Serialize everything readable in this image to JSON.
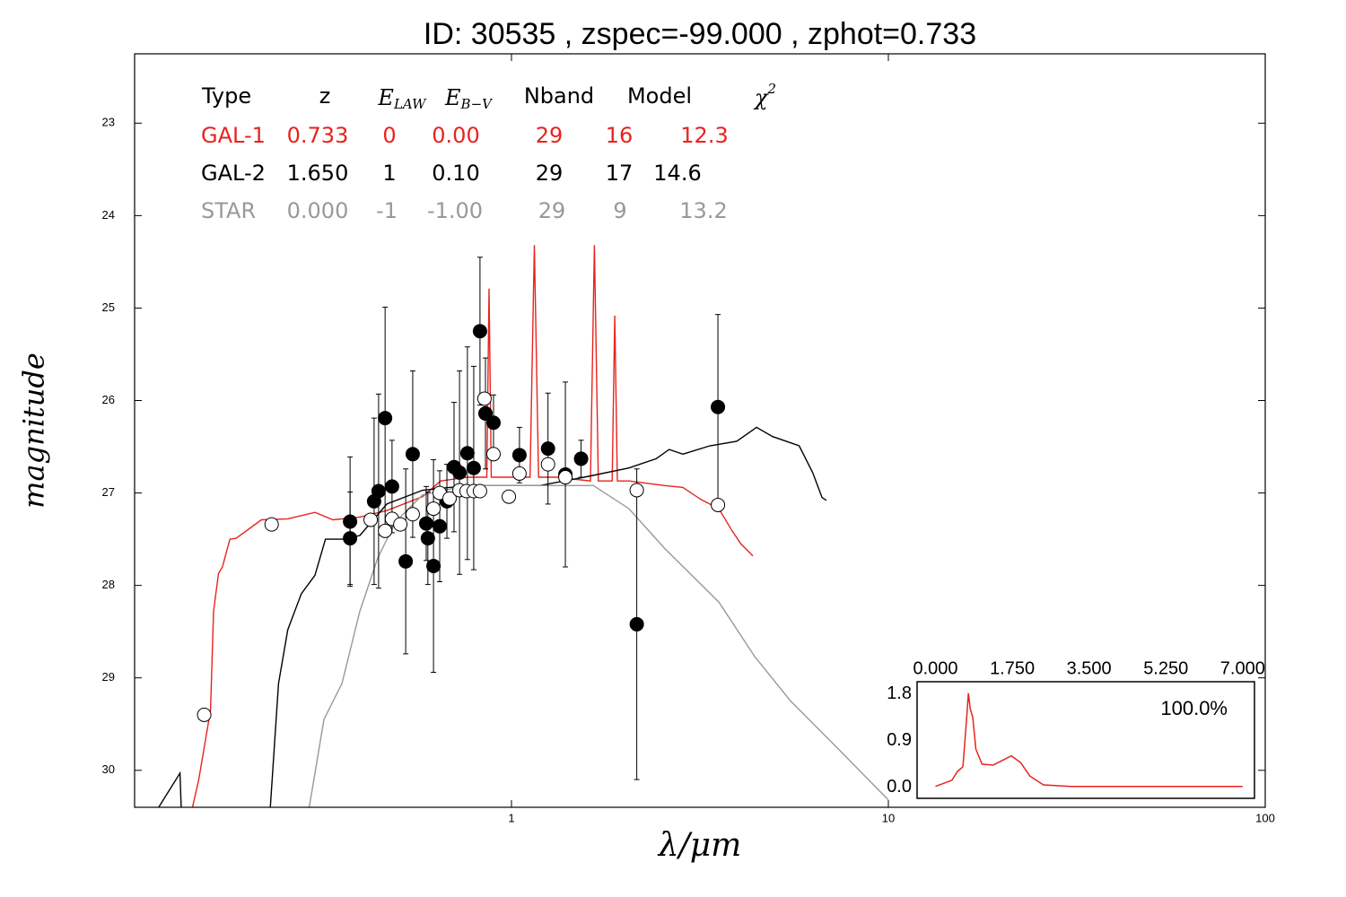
{
  "chart_data": [
    {
      "type": "sed",
      "title": "ID:  30535 , zspec=-99.000 , zphot=0.733",
      "xlabel": "λ/μm",
      "ylabel": "magnitude",
      "xscale": "log",
      "xlim": [
        0.1,
        100
      ],
      "ylim": [
        30.4,
        22.25
      ],
      "xticks": [
        1,
        10,
        100
      ],
      "yticks": [
        23,
        24,
        25,
        26,
        27,
        28,
        29,
        30
      ],
      "fit_table": {
        "header": [
          "Type",
          "z",
          {
            "main": "E",
            "sub": "LAW"
          },
          {
            "main": "E",
            "sub": "B−V"
          },
          "Nband",
          "Model",
          {
            "main": "χ",
            "sup": "2"
          }
        ],
        "rows": [
          [
            "GAL-1",
            "0.733",
            "0",
            "0.00",
            "29",
            "16",
            "12.3"
          ],
          [
            "GAL-2",
            "1.650",
            "1",
            "0.10",
            "29",
            "17",
            "14.6"
          ],
          [
            "STAR",
            "0.000",
            "-1",
            "-1.00",
            "29",
            "9",
            "13.2"
          ]
        ],
        "colors": [
          "#e8231e",
          "#000000",
          "#999999"
        ]
      },
      "series": [
        {
          "color": "#e8231e",
          "x": [
            0.142,
            0.148,
            0.159,
            0.162,
            0.167,
            0.171,
            0.179,
            0.186,
            0.217,
            0.255,
            0.301,
            0.336,
            0.396,
            0.467,
            0.581,
            0.649,
            0.764,
            0.86,
            0.872,
            0.884,
            0.952,
            1.12,
            1.15,
            1.18,
            1.32,
            1.62,
            1.66,
            1.7,
            1.85,
            1.88,
            1.91,
            2.05,
            2.55,
            2.85,
            3.18,
            3.55,
            3.85,
            4.06,
            4.37
          ],
          "values": [
            30.42,
            30.1,
            29.35,
            28.28,
            27.87,
            27.8,
            27.5,
            27.49,
            27.29,
            27.28,
            27.21,
            27.29,
            27.26,
            27.19,
            27.04,
            26.87,
            26.83,
            26.83,
            24.79,
            26.83,
            26.83,
            26.83,
            24.32,
            26.83,
            26.83,
            26.87,
            24.32,
            26.87,
            26.87,
            25.08,
            26.87,
            26.87,
            26.92,
            26.94,
            27.07,
            27.17,
            27.41,
            27.55,
            27.68
          ]
        },
        {
          "color": "#000000",
          "x": [
            0.115,
            0.132,
            0.133,
            null,
            0.229,
            0.241,
            0.255,
            0.277,
            0.301,
            0.321,
            0.355,
            0.396,
            0.467,
            0.581,
            0.764,
            1.19,
            1.56,
            2.05,
            2.42,
            2.62,
            2.85,
            3.36,
            3.96,
            4.47,
            4.93,
            5.8,
            6.3,
            6.67,
            6.85
          ],
          "values": [
            30.42,
            30.03,
            30.42,
            null,
            30.42,
            29.06,
            28.48,
            28.09,
            27.89,
            27.5,
            27.5,
            27.46,
            27.12,
            26.97,
            26.92,
            26.92,
            26.83,
            26.73,
            26.63,
            26.53,
            26.58,
            26.49,
            26.44,
            26.29,
            26.39,
            26.49,
            26.78,
            27.05,
            27.08
          ]
        },
        {
          "color": "#999999",
          "x": [
            0.29,
            0.301,
            0.318,
            0.355,
            0.396,
            0.442,
            0.493,
            0.581,
            0.764,
            1.19,
            1.65,
            2.05,
            2.55,
            3.55,
            4.42,
            5.5,
            7.25,
            10
          ],
          "values": [
            30.42,
            30.03,
            29.45,
            29.06,
            28.28,
            27.7,
            27.31,
            27.02,
            26.92,
            26.92,
            26.92,
            27.17,
            27.6,
            28.18,
            28.77,
            29.25,
            29.74,
            30.32
          ]
        }
      ],
      "points": [
        {
          "fill": "#000000",
          "x": [
            0.373,
            0.373,
            0.432,
            0.444,
            0.462,
            0.482,
            0.524,
            0.547,
            0.594,
            0.6,
            0.621,
            0.645,
            0.674,
            0.704,
            0.728,
            0.764,
            0.794,
            0.825,
            0.853,
            0.896,
            1.05,
            1.25,
            1.39,
            1.53,
            2.15,
            3.53
          ],
          "values": [
            27.31,
            27.49,
            27.09,
            26.98,
            26.19,
            26.93,
            27.74,
            26.58,
            27.33,
            27.49,
            27.79,
            27.36,
            27.09,
            26.72,
            26.78,
            26.57,
            26.73,
            25.25,
            26.14,
            26.24,
            26.59,
            26.52,
            26.8,
            26.63,
            28.42,
            26.07
          ],
          "yerr": [
            0.7,
            0.5,
            0.9,
            1.05,
            1.2,
            0.5,
            1.0,
            0.9,
            0.4,
            0.5,
            1.15,
            0.6,
            0.4,
            0.7,
            1.1,
            1.15,
            1.1,
            0.8,
            0.6,
            0.3,
            0.3,
            0.6,
            1.0,
            0.2,
            1.68,
            1.0
          ]
        },
        {
          "fill": "#ffffff",
          "x": [
            0.153,
            0.231,
            0.423,
            0.462,
            0.482,
            0.507,
            0.547,
            0.621,
            0.645,
            0.685,
            0.728,
            0.76,
            0.794,
            0.825,
            0.848,
            0.896,
            0.984,
            1.05,
            1.25,
            1.39,
            2.15,
            3.53
          ],
          "values": [
            29.4,
            27.34,
            27.29,
            27.41,
            27.28,
            27.34,
            27.23,
            27.17,
            27.0,
            27.06,
            26.97,
            26.98,
            26.98,
            26.98,
            25.98,
            26.58,
            27.04,
            26.79,
            26.69,
            26.83,
            26.97,
            27.13
          ]
        }
      ]
    },
    {
      "type": "line",
      "annotation": "100.0%",
      "xlim": [
        -0.42,
        7.27
      ],
      "ylim": [
        -0.21,
        2.04
      ],
      "xticks": [
        {
          "value": 0,
          "label": "0.000"
        },
        {
          "value": 1.75,
          "label": "1.750"
        },
        {
          "value": 3.5,
          "label": "3.500"
        },
        {
          "value": 5.25,
          "label": "5.250"
        },
        {
          "value": 7,
          "label": "7.000"
        }
      ],
      "yticks": [
        {
          "value": 0,
          "label": "0.0"
        },
        0.9,
        1.8
      ],
      "series": [
        {
          "color": "#e8231e",
          "x": [
            0,
            0.375,
            0.5,
            0.625,
            0.71,
            0.75,
            0.79,
            0.85,
            0.92,
            1.06,
            1.31,
            1.52,
            1.73,
            1.94,
            2.15,
            2.46,
            3.08,
            7
          ],
          "values": [
            0.02,
            0.14,
            0.31,
            0.4,
            1.35,
            1.82,
            1.52,
            1.35,
            0.74,
            0.45,
            0.43,
            0.52,
            0.61,
            0.48,
            0.22,
            0.05,
            0.02,
            0.02
          ]
        }
      ]
    }
  ]
}
